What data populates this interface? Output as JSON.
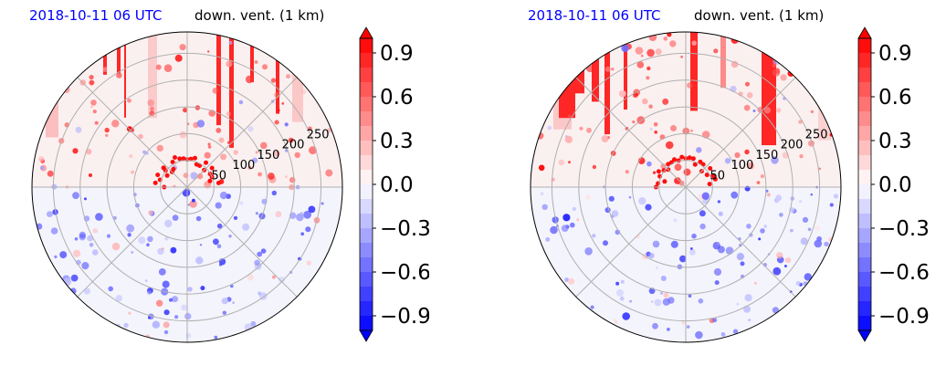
{
  "panels": [
    {
      "datetime_label": "2018-10-11 06 UTC",
      "title": "down. vent. (1 km)",
      "colorbar": {
        "ticks": [
          "0.9",
          "0.6",
          "0.3",
          "0.0",
          "−0.3",
          "−0.6",
          "−0.9"
        ]
      }
    },
    {
      "datetime_label": "2018-10-11 06 UTC",
      "title": "down. vent. (1 km)",
      "colorbar": {
        "ticks": [
          "0.9",
          "0.6",
          "0.3",
          "0.0",
          "−0.3",
          "−0.6",
          "−0.9"
        ]
      }
    }
  ],
  "chart_data": [
    {
      "type": "heatmap",
      "projection": "polar",
      "title": "down. vent. (1 km)",
      "radial_ticks": [
        50,
        100,
        150,
        200,
        250
      ],
      "radial_tick_labels": [
        "50",
        "100",
        "150",
        "200",
        "250"
      ],
      "radial_max": 290,
      "angular_grid_deg": 45,
      "colormap": "bwr",
      "clim": [
        -1.0,
        1.0
      ],
      "extend": "both",
      "colorbar_ticks": [
        -0.9,
        -0.6,
        -0.3,
        0.0,
        0.3,
        0.6,
        0.9
      ],
      "colorbar_tick_labels": [
        "−0.9",
        "−0.6",
        "−0.3",
        "0.0",
        "0.3",
        "0.6",
        "0.9"
      ],
      "colors": {
        "positive": "#ff0000",
        "negative": "#0000ff",
        "neutral": "#ffffff"
      }
    },
    {
      "type": "heatmap",
      "projection": "polar",
      "title": "down. vent. (1 km)",
      "radial_ticks": [
        50,
        100,
        150,
        200,
        250
      ],
      "radial_tick_labels": [
        "50",
        "100",
        "150",
        "200",
        "250"
      ],
      "radial_max": 290,
      "angular_grid_deg": 45,
      "colormap": "bwr",
      "clim": [
        -1.0,
        1.0
      ],
      "extend": "both",
      "colorbar_ticks": [
        -0.9,
        -0.6,
        -0.3,
        0.0,
        0.3,
        0.6,
        0.9
      ],
      "colorbar_tick_labels": [
        "−0.9",
        "−0.6",
        "−0.3",
        "0.0",
        "0.3",
        "0.6",
        "0.9"
      ],
      "colors": {
        "positive": "#ff0000",
        "negative": "#0000ff",
        "neutral": "#ffffff"
      }
    }
  ]
}
